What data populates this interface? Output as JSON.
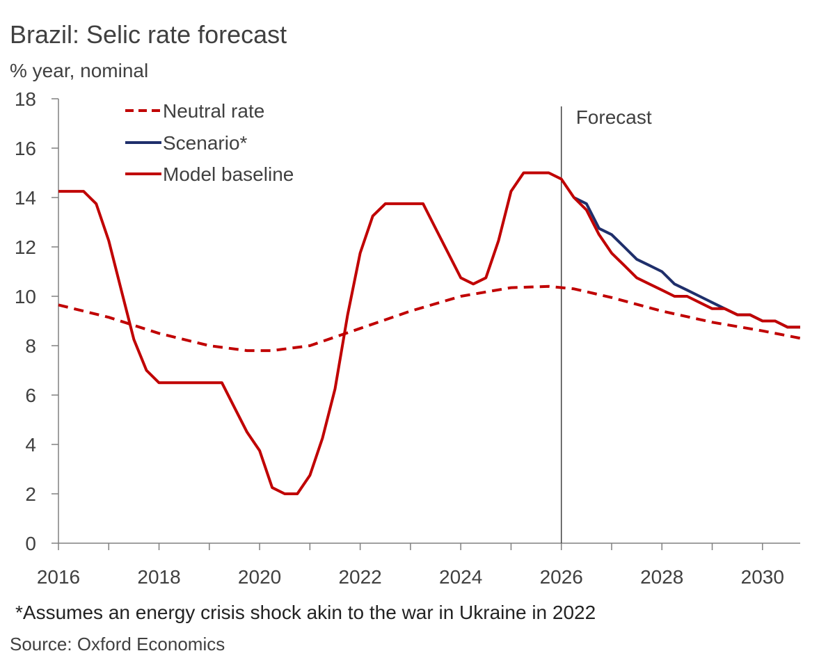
{
  "colors": {
    "model": "#c00000",
    "neutral": "#c00000",
    "scenario": "#1f2f6b",
    "axis": "#808080",
    "forecast_line": "#404040"
  },
  "chart_data": {
    "type": "line",
    "title": "Brazil: Selic rate forecast",
    "ylabel": "% year, nominal",
    "xlabel": "",
    "xlim": [
      2016,
      2030.75
    ],
    "ylim": [
      0,
      18
    ],
    "yticks": [
      0,
      2,
      4,
      6,
      8,
      10,
      12,
      14,
      16,
      18
    ],
    "xtick_labels": [
      {
        "x": 2016,
        "label": "2016"
      },
      {
        "x": 2018,
        "label": "2018"
      },
      {
        "x": 2020,
        "label": "2020"
      },
      {
        "x": 2022,
        "label": "2022"
      },
      {
        "x": 2024,
        "label": "2024"
      },
      {
        "x": 2026,
        "label": "2026"
      },
      {
        "x": 2028,
        "label": "2028"
      },
      {
        "x": 2030,
        "label": "2030"
      }
    ],
    "forecast": {
      "x": 2026,
      "label": "Forecast"
    },
    "legend": [
      "Neutral rate",
      "Scenario*",
      "Model baseline"
    ],
    "series": [
      {
        "name": "Neutral rate",
        "style": "dashed",
        "x": [
          2016,
          2017,
          2018,
          2019,
          2019.75,
          2020.25,
          2021,
          2022,
          2023,
          2024,
          2025,
          2025.75,
          2026.25,
          2027,
          2028,
          2029,
          2030,
          2030.75
        ],
        "values": [
          9.65,
          9.15,
          8.5,
          8.0,
          7.8,
          7.8,
          8.0,
          8.7,
          9.4,
          10.0,
          10.35,
          10.4,
          10.3,
          9.95,
          9.4,
          8.95,
          8.6,
          8.3
        ]
      },
      {
        "name": "Scenario*",
        "style": "solid",
        "x": [
          2026.25,
          2026.5,
          2026.75,
          2027,
          2027.25,
          2027.5,
          2027.75,
          2028,
          2028.25,
          2028.5,
          2028.75,
          2029,
          2029.25,
          2029.5,
          2029.75,
          2030,
          2030.25,
          2030.5,
          2030.75
        ],
        "values": [
          14.0,
          13.75,
          12.75,
          12.5,
          12.0,
          11.5,
          11.25,
          11.0,
          10.5,
          10.25,
          10.0,
          9.75,
          9.5,
          9.25,
          9.25,
          9.0,
          9.0,
          8.75,
          8.75
        ]
      },
      {
        "name": "Model baseline",
        "style": "solid",
        "x": [
          2016,
          2016.25,
          2016.5,
          2016.75,
          2017,
          2017.25,
          2017.5,
          2017.75,
          2018,
          2018.25,
          2018.5,
          2018.75,
          2019,
          2019.25,
          2019.5,
          2019.75,
          2020,
          2020.25,
          2020.5,
          2020.75,
          2021,
          2021.25,
          2021.5,
          2021.75,
          2022,
          2022.25,
          2022.5,
          2022.75,
          2023,
          2023.25,
          2023.5,
          2023.75,
          2024,
          2024.25,
          2024.5,
          2024.75,
          2025,
          2025.25,
          2025.5,
          2025.75,
          2026,
          2026.25,
          2026.5,
          2026.75,
          2027,
          2027.25,
          2027.5,
          2027.75,
          2028,
          2028.25,
          2028.5,
          2028.75,
          2029,
          2029.25,
          2029.5,
          2029.75,
          2030,
          2030.25,
          2030.5,
          2030.75
        ],
        "values": [
          14.25,
          14.25,
          14.25,
          13.75,
          12.25,
          10.25,
          8.25,
          7.0,
          6.5,
          6.5,
          6.5,
          6.5,
          6.5,
          6.5,
          5.5,
          4.5,
          3.75,
          2.25,
          2.0,
          2.0,
          2.75,
          4.25,
          6.25,
          9.25,
          11.75,
          13.25,
          13.75,
          13.75,
          13.75,
          13.75,
          12.75,
          11.75,
          10.75,
          10.5,
          10.75,
          12.25,
          14.25,
          15.0,
          15.0,
          15.0,
          14.75,
          14.0,
          13.5,
          12.5,
          11.75,
          11.25,
          10.75,
          10.5,
          10.25,
          10.0,
          10.0,
          9.75,
          9.5,
          9.5,
          9.25,
          9.25,
          9.0,
          9.0,
          8.75,
          8.75
        ]
      }
    ],
    "footnote": "*Assumes an energy crisis shock akin to the war in Ukraine in 2022",
    "source": "Source: Oxford Economics"
  }
}
